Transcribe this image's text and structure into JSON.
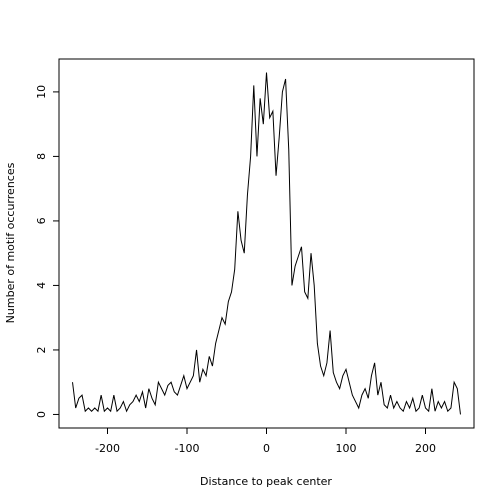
{
  "chart_data": {
    "type": "line",
    "xlabel": "Distance to peak center",
    "ylabel": "Number of motif occurrences",
    "x": [
      -244,
      -240,
      -236,
      -232,
      -228,
      -224,
      -220,
      -216,
      -212,
      -208,
      -204,
      -200,
      -196,
      -192,
      -188,
      -184,
      -180,
      -176,
      -172,
      -168,
      -164,
      -160,
      -156,
      -152,
      -148,
      -144,
      -140,
      -136,
      -132,
      -128,
      -124,
      -120,
      -116,
      -112,
      -108,
      -104,
      -100,
      -96,
      -92,
      -88,
      -84,
      -80,
      -76,
      -72,
      -68,
      -64,
      -60,
      -56,
      -52,
      -48,
      -44,
      -40,
      -36,
      -32,
      -28,
      -24,
      -20,
      -16,
      -12,
      -8,
      -4,
      0,
      4,
      8,
      12,
      16,
      20,
      24,
      28,
      32,
      36,
      40,
      44,
      48,
      52,
      56,
      60,
      64,
      68,
      72,
      76,
      80,
      84,
      88,
      92,
      96,
      100,
      104,
      108,
      112,
      116,
      120,
      124,
      128,
      132,
      136,
      140,
      144,
      148,
      152,
      156,
      160,
      164,
      168,
      172,
      176,
      180,
      184,
      188,
      192,
      196,
      200,
      204,
      208,
      212,
      216,
      220,
      224,
      228,
      232,
      236,
      240,
      244
    ],
    "series": [
      {
        "name": "occurrences",
        "color": "#000000",
        "values": [
          1.0,
          0.2,
          0.5,
          0.6,
          0.1,
          0.2,
          0.1,
          0.2,
          0.1,
          0.6,
          0.1,
          0.2,
          0.1,
          0.6,
          0.1,
          0.2,
          0.4,
          0.1,
          0.3,
          0.4,
          0.6,
          0.4,
          0.7,
          0.2,
          0.8,
          0.5,
          0.3,
          1.0,
          0.8,
          0.6,
          0.9,
          1.0,
          0.7,
          0.6,
          0.9,
          1.2,
          0.8,
          1.0,
          1.2,
          2.0,
          1.0,
          1.4,
          1.2,
          1.8,
          1.5,
          2.2,
          2.6,
          3.0,
          2.8,
          3.5,
          3.8,
          4.5,
          6.3,
          5.4,
          5.0,
          6.8,
          8.0,
          10.2,
          8.0,
          9.8,
          9.0,
          10.6,
          9.2,
          9.4,
          7.4,
          8.6,
          10.0,
          10.4,
          8.2,
          4.0,
          4.6,
          4.9,
          5.2,
          3.8,
          3.6,
          5.0,
          4.0,
          2.2,
          1.5,
          1.2,
          1.6,
          2.6,
          1.3,
          1.0,
          0.8,
          1.2,
          1.4,
          1.0,
          0.6,
          0.4,
          0.2,
          0.6,
          0.8,
          0.5,
          1.2,
          1.6,
          0.6,
          1.0,
          0.3,
          0.2,
          0.6,
          0.2,
          0.4,
          0.2,
          0.1,
          0.4,
          0.2,
          0.5,
          0.1,
          0.2,
          0.6,
          0.2,
          0.1,
          0.8,
          0.1,
          0.4,
          0.2,
          0.4,
          0.1,
          0.2,
          1.0,
          0.8,
          0
        ]
      }
    ],
    "xlim": [
      -261,
      261
    ],
    "xticks": [
      -200,
      -100,
      0,
      100,
      200
    ],
    "ylim": [
      -0.42,
      11.02
    ],
    "yticks": [
      0,
      2,
      4,
      6,
      8,
      10
    ]
  }
}
